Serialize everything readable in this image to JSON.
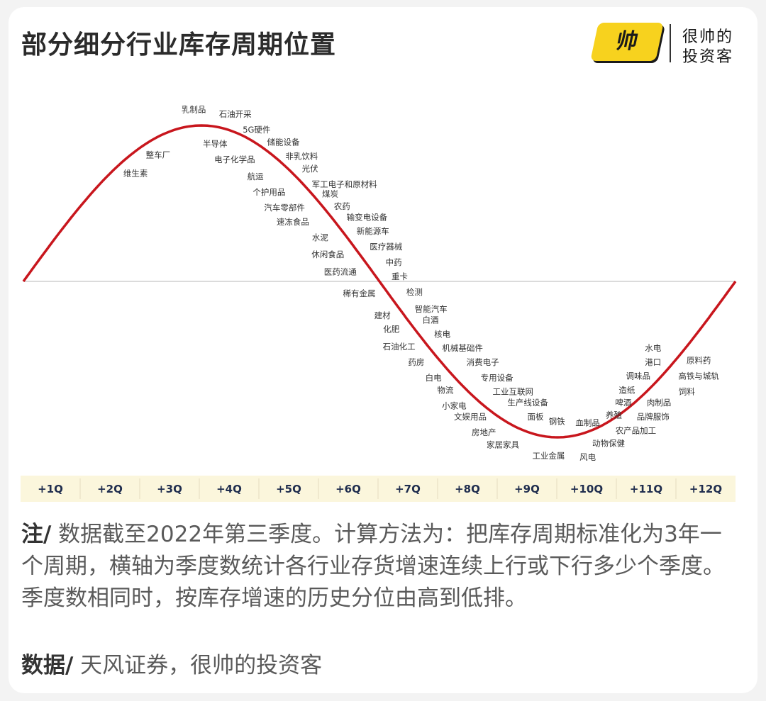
{
  "header": {
    "title": "部分细分行业库存周期位置",
    "logo_mark": "帅",
    "logo_line1": "很帅的",
    "logo_line2": "投资客"
  },
  "colors": {
    "curve": "#c8161d",
    "axis_band": "#fbf6dc",
    "label": "#333333",
    "tick": "#1f2d4e"
  },
  "chart_data": {
    "type": "scatter",
    "x_unit": "quarter",
    "xlim": [
      0,
      12
    ],
    "ylim": [
      -1,
      1
    ],
    "curve": "sine, one full cycle over 12 quarters",
    "categories": [
      "+1Q",
      "+2Q",
      "+3Q",
      "+4Q",
      "+5Q",
      "+6Q",
      "+7Q",
      "+8Q",
      "+9Q",
      "+10Q",
      "+11Q",
      "+12Q"
    ],
    "labels": [
      {
        "text": "维生素",
        "x": 1.89,
        "y": 0.69
      },
      {
        "text": "整车厂",
        "x": 2.27,
        "y": 0.81
      },
      {
        "text": "乳制品",
        "x": 2.87,
        "y": 1.1
      },
      {
        "text": "石油开采",
        "x": 3.57,
        "y": 1.07
      },
      {
        "text": "半导体",
        "x": 3.23,
        "y": 0.88
      },
      {
        "text": "5G硬件",
        "x": 3.93,
        "y": 0.97
      },
      {
        "text": "电子化学品",
        "x": 3.56,
        "y": 0.78
      },
      {
        "text": "储能设备",
        "x": 4.38,
        "y": 0.89
      },
      {
        "text": "非乳饮料",
        "x": 4.69,
        "y": 0.8
      },
      {
        "text": "航运",
        "x": 3.91,
        "y": 0.67
      },
      {
        "text": "光伏",
        "x": 4.83,
        "y": 0.72
      },
      {
        "text": "个护用品",
        "x": 4.14,
        "y": 0.57
      },
      {
        "text": "军工电子和原材料",
        "x": 5.41,
        "y": 0.62
      },
      {
        "text": "煤炭",
        "x": 5.17,
        "y": 0.56
      },
      {
        "text": "汽车零部件",
        "x": 4.4,
        "y": 0.47
      },
      {
        "text": "农药",
        "x": 5.37,
        "y": 0.48
      },
      {
        "text": "速冻食品",
        "x": 4.54,
        "y": 0.38
      },
      {
        "text": "输变电设备",
        "x": 5.79,
        "y": 0.41
      },
      {
        "text": "新能源车",
        "x": 5.89,
        "y": 0.32
      },
      {
        "text": "水泥",
        "x": 5.0,
        "y": 0.28
      },
      {
        "text": "医疗器械",
        "x": 6.11,
        "y": 0.22
      },
      {
        "text": "休闲食品",
        "x": 5.13,
        "y": 0.17
      },
      {
        "text": "中药",
        "x": 6.24,
        "y": 0.12
      },
      {
        "text": "医药流通",
        "x": 5.34,
        "y": 0.06
      },
      {
        "text": "重卡",
        "x": 6.34,
        "y": 0.03
      },
      {
        "text": "稀有金属",
        "x": 5.66,
        "y": -0.08
      },
      {
        "text": "检测",
        "x": 6.59,
        "y": -0.07
      },
      {
        "text": "智能汽车",
        "x": 6.87,
        "y": -0.18
      },
      {
        "text": "建材",
        "x": 6.05,
        "y": -0.22
      },
      {
        "text": "白酒",
        "x": 6.86,
        "y": -0.25
      },
      {
        "text": "化肥",
        "x": 6.2,
        "y": -0.31
      },
      {
        "text": "核电",
        "x": 7.06,
        "y": -0.34
      },
      {
        "text": "石油化工",
        "x": 6.33,
        "y": -0.42
      },
      {
        "text": "机械基础件",
        "x": 7.4,
        "y": -0.43
      },
      {
        "text": "药房",
        "x": 6.62,
        "y": -0.52
      },
      {
        "text": "消费电子",
        "x": 7.74,
        "y": -0.52
      },
      {
        "text": "白电",
        "x": 6.91,
        "y": -0.62
      },
      {
        "text": "专用设备",
        "x": 7.98,
        "y": -0.62
      },
      {
        "text": "物流",
        "x": 7.11,
        "y": -0.7
      },
      {
        "text": "工业互联网",
        "x": 8.25,
        "y": -0.71
      },
      {
        "text": "小家电",
        "x": 7.26,
        "y": -0.8
      },
      {
        "text": "生产线设备",
        "x": 8.5,
        "y": -0.78
      },
      {
        "text": "文娱用品",
        "x": 7.53,
        "y": -0.87
      },
      {
        "text": "面板",
        "x": 8.63,
        "y": -0.87
      },
      {
        "text": "钢铁",
        "x": 8.99,
        "y": -0.9
      },
      {
        "text": "血制品",
        "x": 9.51,
        "y": -0.91
      },
      {
        "text": "房地产",
        "x": 7.76,
        "y": -0.97
      },
      {
        "text": "家居家具",
        "x": 8.08,
        "y": -1.05
      },
      {
        "text": "工业金属",
        "x": 8.85,
        "y": -1.12
      },
      {
        "text": "风电",
        "x": 9.51,
        "y": -1.13
      },
      {
        "text": "动物保健",
        "x": 9.86,
        "y": -1.04
      },
      {
        "text": "农产品加工",
        "x": 10.32,
        "y": -0.96
      },
      {
        "text": "养殖",
        "x": 9.95,
        "y": -0.86
      },
      {
        "text": "品牌服饰",
        "x": 10.61,
        "y": -0.87
      },
      {
        "text": "啤酒",
        "x": 10.11,
        "y": -0.78
      },
      {
        "text": "肉制品",
        "x": 10.71,
        "y": -0.78
      },
      {
        "text": "造纸",
        "x": 10.17,
        "y": -0.7
      },
      {
        "text": "饲料",
        "x": 11.18,
        "y": -0.71
      },
      {
        "text": "调味品",
        "x": 10.36,
        "y": -0.61
      },
      {
        "text": "高铁与城轨",
        "x": 11.38,
        "y": -0.61
      },
      {
        "text": "港口",
        "x": 10.61,
        "y": -0.52
      },
      {
        "text": "原料药",
        "x": 11.38,
        "y": -0.51
      },
      {
        "text": "水电",
        "x": 10.61,
        "y": -0.43
      }
    ]
  },
  "note": {
    "label": "注/",
    "text": " 数据截至2022年第三季度。计算方法为：把库存周期标准化为3年一个周期，横轴为季度数统计各行业存货增速连续上行或下行多少个季度。季度数相同时，按库存增速的历史分位由高到低排。"
  },
  "source": {
    "label": "数据/",
    "text": " 天风证券，很帅的投资客"
  }
}
